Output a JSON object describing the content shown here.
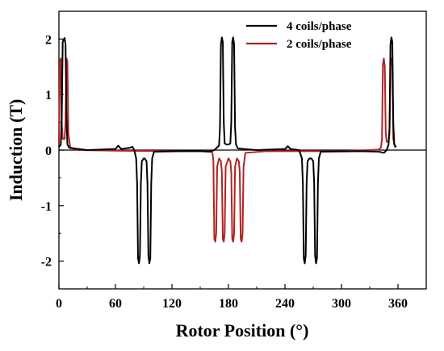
{
  "chart_data": {
    "type": "line",
    "xlabel": "Rotor Position (°)",
    "ylabel": "Induction (T)",
    "xlim": [
      0,
      390
    ],
    "ylim": [
      -2.5,
      2.5
    ],
    "xticks": [
      0,
      60,
      120,
      180,
      240,
      300,
      360
    ],
    "yticks": [
      -2,
      -1,
      0,
      1,
      2
    ],
    "xtick_labels": [
      "0",
      "60",
      "120",
      "180",
      "240",
      "300",
      "360"
    ],
    "ytick_labels": [
      "-2",
      "-1",
      "0",
      "1",
      "2"
    ],
    "grid": false,
    "zero_line": true,
    "legend_position": "top-right",
    "series": [
      {
        "name": "4 coils/phase",
        "color": "#000000",
        "points": [
          [
            0,
            0.05
          ],
          [
            2,
            0.1
          ],
          [
            3,
            0.6
          ],
          [
            4,
            1.95
          ],
          [
            6,
            2.02
          ],
          [
            7,
            1.9
          ],
          [
            8,
            0.6
          ],
          [
            9,
            0.1
          ],
          [
            11,
            0.04
          ],
          [
            30,
            0.0
          ],
          [
            60,
            0.02
          ],
          [
            63,
            0.08
          ],
          [
            66,
            0.02
          ],
          [
            75,
            0.04
          ],
          [
            78,
            0.06
          ],
          [
            80,
            0.0
          ],
          [
            82,
            -0.15
          ],
          [
            83,
            -0.6
          ],
          [
            84,
            -1.95
          ],
          [
            85,
            -2.04
          ],
          [
            86,
            -1.9
          ],
          [
            87,
            -0.6
          ],
          [
            88,
            -0.2
          ],
          [
            90,
            -0.15
          ],
          [
            91,
            -0.15
          ],
          [
            93,
            -0.2
          ],
          [
            94,
            -0.6
          ],
          [
            95,
            -1.9
          ],
          [
            96,
            -2.04
          ],
          [
            97,
            -1.95
          ],
          [
            98,
            -0.6
          ],
          [
            99,
            -0.15
          ],
          [
            101,
            -0.03
          ],
          [
            130,
            -0.02
          ],
          [
            150,
            -0.02
          ],
          [
            160,
            -0.03
          ],
          [
            165,
            0.0
          ],
          [
            170,
            0.08
          ],
          [
            171,
            0.4
          ],
          [
            172,
            1.9
          ],
          [
            173,
            2.03
          ],
          [
            174,
            1.95
          ],
          [
            175,
            0.5
          ],
          [
            176,
            0.12
          ],
          [
            178,
            0.1
          ],
          [
            180,
            0.1
          ],
          [
            182,
            0.12
          ],
          [
            183,
            0.5
          ],
          [
            184,
            1.95
          ],
          [
            185,
            2.03
          ],
          [
            186,
            1.9
          ],
          [
            187,
            0.4
          ],
          [
            188,
            0.1
          ],
          [
            190,
            0.03
          ],
          [
            210,
            0.0
          ],
          [
            240,
            0.02
          ],
          [
            243,
            0.07
          ],
          [
            246,
            0.02
          ],
          [
            255,
            0.0
          ],
          [
            258,
            -0.15
          ],
          [
            259,
            -0.6
          ],
          [
            260,
            -1.95
          ],
          [
            261,
            -2.04
          ],
          [
            262,
            -1.9
          ],
          [
            263,
            -0.6
          ],
          [
            264,
            -0.2
          ],
          [
            266,
            -0.15
          ],
          [
            268,
            -0.15
          ],
          [
            270,
            -0.2
          ],
          [
            271,
            -0.6
          ],
          [
            272,
            -1.9
          ],
          [
            273,
            -2.04
          ],
          [
            274,
            -1.95
          ],
          [
            275,
            -0.6
          ],
          [
            276,
            -0.15
          ],
          [
            278,
            -0.03
          ],
          [
            320,
            -0.02
          ],
          [
            340,
            -0.03
          ],
          [
            345,
            -0.05
          ],
          [
            348,
            0.0
          ],
          [
            350,
            0.1
          ],
          [
            351,
            0.4
          ],
          [
            352,
            1.9
          ],
          [
            353,
            2.03
          ],
          [
            354,
            1.95
          ],
          [
            355,
            0.5
          ],
          [
            356,
            0.1
          ],
          [
            358,
            0.05
          ]
        ]
      },
      {
        "name": "2 coils/phase",
        "color": "#b22222",
        "points": [
          [
            0,
            0.1
          ],
          [
            1,
            1.6
          ],
          [
            2,
            1.65
          ],
          [
            3,
            0.5
          ],
          [
            4,
            0.2
          ],
          [
            6,
            0.2
          ],
          [
            7,
            0.5
          ],
          [
            8,
            1.65
          ],
          [
            9,
            1.6
          ],
          [
            10,
            0.3
          ],
          [
            12,
            0.05
          ],
          [
            20,
            0.0
          ],
          [
            60,
            -0.01
          ],
          [
            120,
            -0.02
          ],
          [
            160,
            -0.02
          ],
          [
            163,
            -0.05
          ],
          [
            164,
            -0.2
          ],
          [
            165,
            -1.6
          ],
          [
            166,
            -1.65
          ],
          [
            167,
            -1.5
          ],
          [
            168,
            -0.3
          ],
          [
            170,
            -0.15
          ],
          [
            172,
            -0.2
          ],
          [
            173,
            -0.4
          ],
          [
            174,
            -1.6
          ],
          [
            175,
            -1.65
          ],
          [
            176,
            -1.5
          ],
          [
            177,
            -0.3
          ],
          [
            180,
            -0.15
          ],
          [
            182,
            -0.2
          ],
          [
            183,
            -0.4
          ],
          [
            184,
            -1.6
          ],
          [
            185,
            -1.65
          ],
          [
            186,
            -1.5
          ],
          [
            187,
            -0.3
          ],
          [
            189,
            -0.15
          ],
          [
            191,
            -0.2
          ],
          [
            192,
            -0.4
          ],
          [
            193,
            -1.6
          ],
          [
            194,
            -1.65
          ],
          [
            195,
            -1.5
          ],
          [
            196,
            -0.3
          ],
          [
            198,
            -0.05
          ],
          [
            220,
            -0.02
          ],
          [
            300,
            -0.02
          ],
          [
            330,
            0.0
          ],
          [
            340,
            0.01
          ],
          [
            342,
            0.05
          ],
          [
            343,
            0.2
          ],
          [
            344,
            1.55
          ],
          [
            345,
            1.65
          ],
          [
            346,
            1.5
          ],
          [
            347,
            0.3
          ],
          [
            348,
            0.15
          ],
          [
            350,
            0.15
          ],
          [
            351,
            0.3
          ],
          [
            352,
            1.5
          ],
          [
            353,
            1.65
          ],
          [
            354,
            1.55
          ],
          [
            355,
            0.2
          ],
          [
            357,
            0.05
          ]
        ]
      }
    ]
  }
}
